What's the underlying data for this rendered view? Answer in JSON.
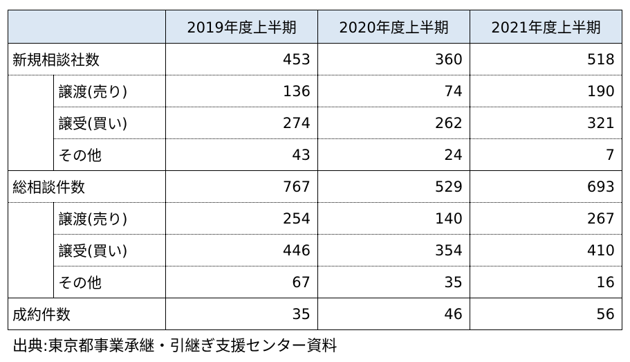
{
  "headers": [
    "",
    "2019年度上半期",
    "2020年度上半期",
    "2021年度上半期"
  ],
  "groups": [
    {
      "label": "新規相談社数",
      "values": [
        "453",
        "360",
        "518"
      ],
      "sub": [
        {
          "label": "譲渡(売り)",
          "values": [
            "136",
            "74",
            "190"
          ]
        },
        {
          "label": "譲受(買い)",
          "values": [
            "274",
            "262",
            "321"
          ]
        },
        {
          "label": "その他",
          "values": [
            "43",
            "24",
            "7"
          ]
        }
      ]
    },
    {
      "label": "総相談件数",
      "values": [
        "767",
        "529",
        "693"
      ],
      "sub": [
        {
          "label": "譲渡(売り)",
          "values": [
            "254",
            "140",
            "267"
          ]
        },
        {
          "label": "譲受(買い)",
          "values": [
            "446",
            "354",
            "410"
          ]
        },
        {
          "label": "その他",
          "values": [
            "67",
            "35",
            "16"
          ]
        }
      ]
    }
  ],
  "final": {
    "label": "成約件数",
    "values": [
      "35",
      "46",
      "56"
    ]
  },
  "source": "出典:東京都事業承継・引継ぎ支援センター資料"
}
